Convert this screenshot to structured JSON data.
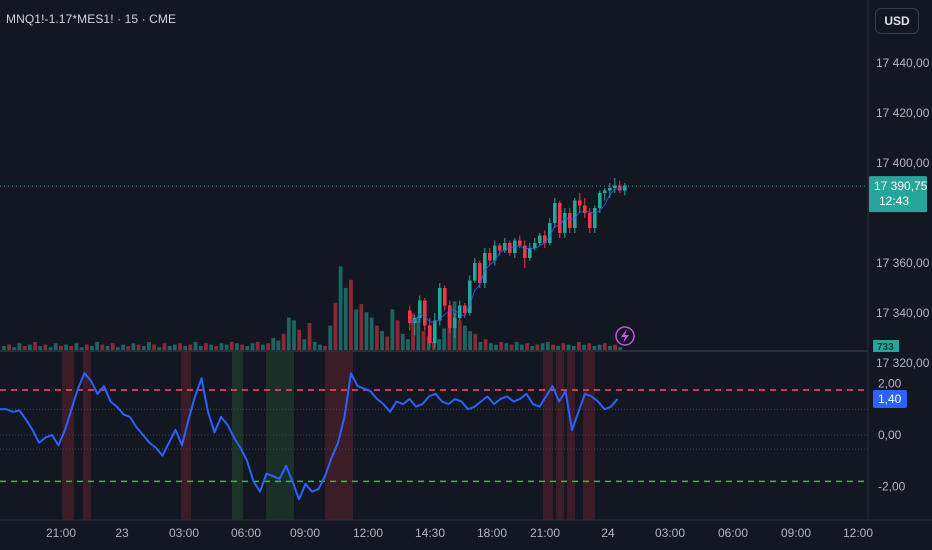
{
  "header": {
    "symbol": "MNQ1!-1.17*MES1! · 15 · CME",
    "currency_button": "USD"
  },
  "colors": {
    "up": "#26a69a",
    "down": "#f23645",
    "indicator_line": "#2962ff",
    "upper_band": "#f7525f",
    "lower_band": "#4caf50",
    "background": "#131722"
  },
  "price_axis": {
    "ticks": [
      "17 440,00",
      "17 420,00",
      "17 400,00",
      "17 360,00",
      "17 340,00",
      "17 320,00"
    ],
    "tick_values": [
      17440,
      17420,
      17400,
      17360,
      17340,
      17320
    ]
  },
  "last_price": {
    "value": "17 390,75",
    "countdown": "12:43",
    "numeric": 17390.75
  },
  "volume_label": "733",
  "indicator_axis": {
    "ticks": [
      "2,00",
      "0,00",
      "-2,00"
    ],
    "tick_values": [
      2,
      0,
      -2
    ],
    "current": "1,40",
    "current_value": 1.4,
    "upper_band": 1.75,
    "lower_band": -1.8
  },
  "time_axis": {
    "labels": [
      "21:00",
      "23",
      "03:00",
      "06:00",
      "09:00",
      "12:00",
      "14:30",
      "18:00",
      "21:00",
      "24",
      "03:00",
      "06:00",
      "09:00",
      "12:00"
    ]
  },
  "chart_data": [
    {
      "type": "candlestick",
      "title": "MNQ1!-1.17*MES1! · 15 · CME",
      "ylim": [
        17300,
        17455
      ],
      "x_start_label": "21:00",
      "candles": [
        {
          "o": 17341,
          "h": 17343,
          "l": 17333,
          "c": 17336
        },
        {
          "o": 17336,
          "h": 17339,
          "l": 17331,
          "c": 17338
        },
        {
          "o": 17338,
          "h": 17347,
          "l": 17336,
          "c": 17345
        },
        {
          "o": 17345,
          "h": 17346,
          "l": 17333,
          "c": 17335
        },
        {
          "o": 17335,
          "h": 17338,
          "l": 17326,
          "c": 17328
        },
        {
          "o": 17328,
          "h": 17340,
          "l": 17326,
          "c": 17337
        },
        {
          "o": 17337,
          "h": 17352,
          "l": 17335,
          "c": 17350
        },
        {
          "o": 17350,
          "h": 17351,
          "l": 17341,
          "c": 17343
        },
        {
          "o": 17343,
          "h": 17345,
          "l": 17332,
          "c": 17334
        },
        {
          "o": 17334,
          "h": 17340,
          "l": 17330,
          "c": 17338
        },
        {
          "o": 17338,
          "h": 17345,
          "l": 17337,
          "c": 17343
        },
        {
          "o": 17343,
          "h": 17344,
          "l": 17338,
          "c": 17340
        },
        {
          "o": 17340,
          "h": 17355,
          "l": 17339,
          "c": 17353
        },
        {
          "o": 17353,
          "h": 17362,
          "l": 17352,
          "c": 17360
        },
        {
          "o": 17360,
          "h": 17361,
          "l": 17350,
          "c": 17352
        },
        {
          "o": 17352,
          "h": 17366,
          "l": 17350,
          "c": 17364
        },
        {
          "o": 17364,
          "h": 17366,
          "l": 17359,
          "c": 17361
        },
        {
          "o": 17361,
          "h": 17369,
          "l": 17359,
          "c": 17367
        },
        {
          "o": 17367,
          "h": 17368,
          "l": 17363,
          "c": 17365
        },
        {
          "o": 17365,
          "h": 17370,
          "l": 17364,
          "c": 17368
        },
        {
          "o": 17368,
          "h": 17369,
          "l": 17363,
          "c": 17364
        },
        {
          "o": 17364,
          "h": 17370,
          "l": 17362,
          "c": 17369
        },
        {
          "o": 17369,
          "h": 17371,
          "l": 17366,
          "c": 17367
        },
        {
          "o": 17367,
          "h": 17369,
          "l": 17358,
          "c": 17362
        },
        {
          "o": 17362,
          "h": 17368,
          "l": 17361,
          "c": 17366
        },
        {
          "o": 17366,
          "h": 17370,
          "l": 17365,
          "c": 17368
        },
        {
          "o": 17368,
          "h": 17372,
          "l": 17367,
          "c": 17371
        },
        {
          "o": 17371,
          "h": 17373,
          "l": 17366,
          "c": 17368
        },
        {
          "o": 17368,
          "h": 17378,
          "l": 17367,
          "c": 17376
        },
        {
          "o": 17376,
          "h": 17386,
          "l": 17374,
          "c": 17384
        },
        {
          "o": 17384,
          "h": 17385,
          "l": 17370,
          "c": 17372
        },
        {
          "o": 17372,
          "h": 17382,
          "l": 17370,
          "c": 17380
        },
        {
          "o": 17380,
          "h": 17382,
          "l": 17372,
          "c": 17374
        },
        {
          "o": 17374,
          "h": 17386,
          "l": 17372,
          "c": 17385
        },
        {
          "o": 17385,
          "h": 17388,
          "l": 17380,
          "c": 17383
        },
        {
          "o": 17383,
          "h": 17386,
          "l": 17378,
          "c": 17380
        },
        {
          "o": 17380,
          "h": 17382,
          "l": 17372,
          "c": 17374
        },
        {
          "o": 17374,
          "h": 17383,
          "l": 17372,
          "c": 17382
        },
        {
          "o": 17382,
          "h": 17389,
          "l": 17380,
          "c": 17388
        },
        {
          "o": 17388,
          "h": 17390,
          "l": 17385,
          "c": 17389
        },
        {
          "o": 17389,
          "h": 17392,
          "l": 17386,
          "c": 17390
        },
        {
          "o": 17390,
          "h": 17394,
          "l": 17388,
          "c": 17391
        },
        {
          "o": 17391,
          "h": 17393,
          "l": 17388,
          "c": 17389
        },
        {
          "o": 17389,
          "h": 17392,
          "l": 17387,
          "c": 17391
        }
      ]
    },
    {
      "type": "bar",
      "title": "Volume",
      "values": [
        3,
        4,
        2,
        5,
        3,
        4,
        6,
        3,
        4,
        2,
        5,
        3,
        4,
        3,
        5,
        2,
        4,
        3,
        6,
        4,
        3,
        5,
        2,
        4,
        3,
        5,
        4,
        3,
        6,
        4,
        2,
        5,
        3,
        4,
        5,
        3,
        4,
        6,
        3,
        5,
        4,
        3,
        5,
        4,
        6,
        5,
        4,
        3,
        5,
        6,
        4,
        5,
        9,
        7,
        12,
        24,
        22,
        15,
        8,
        20,
        6,
        4,
        3,
        18,
        35,
        62,
        46,
        52,
        30,
        34,
        28,
        24,
        18,
        14,
        10,
        30,
        22,
        12,
        8,
        27,
        24,
        14,
        10,
        6,
        8,
        16,
        28,
        36,
        22,
        18,
        14,
        12,
        6,
        8,
        5,
        4,
        6,
        5,
        4,
        6,
        4,
        5,
        3,
        4,
        5,
        6,
        4,
        3,
        5,
        4,
        3,
        6,
        4,
        5,
        3,
        4,
        5,
        3,
        4,
        2
      ],
      "up": [
        1,
        0,
        1,
        1,
        0,
        1,
        0,
        1,
        0,
        1,
        1,
        0,
        1,
        0,
        1,
        1,
        0,
        1,
        1,
        0,
        1,
        0,
        1,
        1,
        0,
        1,
        0,
        1,
        1,
        0,
        1,
        0,
        1,
        1,
        0,
        1,
        0,
        1,
        1,
        0,
        1,
        0,
        1,
        1,
        0,
        1,
        0,
        1,
        1,
        0,
        1,
        0,
        1,
        1,
        0,
        1,
        1,
        0,
        1,
        0,
        1,
        1,
        0,
        1,
        0,
        1,
        1,
        0,
        1,
        0,
        1,
        1,
        0,
        1,
        0,
        1,
        0,
        1,
        1,
        0,
        1,
        0,
        1,
        0,
        1,
        1,
        0,
        1,
        0,
        1,
        1,
        0,
        1,
        0,
        1,
        1,
        0,
        1,
        0,
        1,
        1,
        0,
        1,
        0,
        1,
        1,
        0,
        1,
        0,
        1,
        1,
        0,
        1,
        0,
        1,
        1,
        0,
        1,
        0,
        1
      ]
    },
    {
      "type": "line",
      "title": "",
      "ylim": [
        -3.3,
        3.3
      ],
      "upper_band": 1.75,
      "lower_band": -1.8,
      "values": [
        1.0,
        1.0,
        0.9,
        0.95,
        0.6,
        0.2,
        -0.3,
        -0.1,
        0.0,
        -0.4,
        0.2,
        1.0,
        1.8,
        2.4,
        2.1,
        1.6,
        1.9,
        1.3,
        1.1,
        0.8,
        0.7,
        0.3,
        0.0,
        -0.3,
        -0.5,
        -0.8,
        -0.3,
        0.2,
        -0.4,
        0.6,
        1.5,
        2.2,
        0.9,
        0.1,
        0.7,
        0.4,
        -0.1,
        -0.5,
        -1.0,
        -1.8,
        -2.2,
        -1.5,
        -1.6,
        -1.7,
        -1.2,
        -1.8,
        -2.5,
        -1.9,
        -2.2,
        -2.1,
        -1.6,
        -0.9,
        -0.3,
        0.7,
        2.4,
        1.9,
        1.8,
        1.7,
        1.4,
        1.2,
        0.9,
        1.3,
        1.2,
        1.4,
        1.1,
        1.2,
        1.5,
        1.6,
        1.3,
        1.2,
        1.4,
        1.3,
        1.0,
        1.1,
        1.3,
        1.5,
        1.2,
        1.4,
        1.5,
        1.3,
        1.4,
        1.6,
        1.2,
        1.1,
        1.5,
        1.9,
        1.3,
        1.7,
        0.2,
        0.9,
        1.6,
        1.5,
        1.3,
        1.0,
        1.1,
        1.4
      ]
    }
  ]
}
